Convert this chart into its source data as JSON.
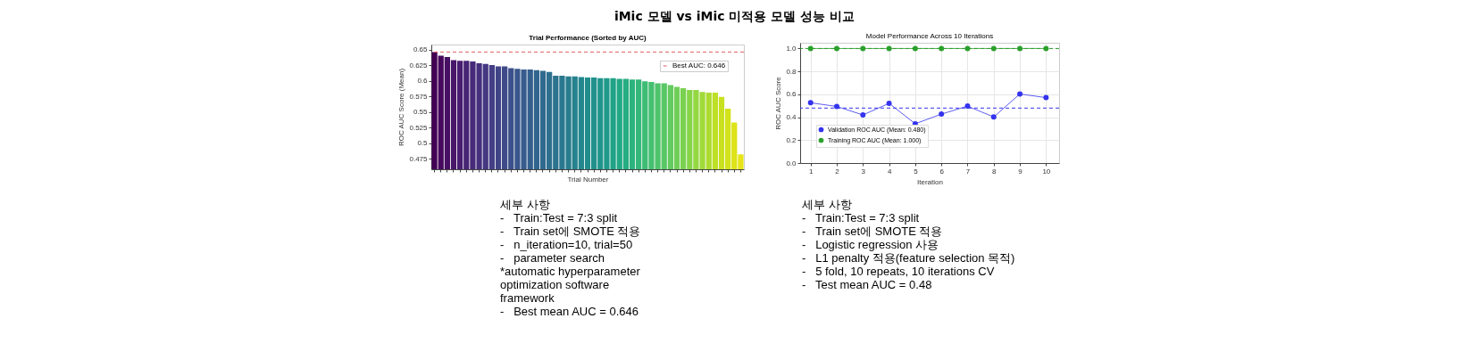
{
  "chart_data": [
    {
      "type": "bar",
      "title": "Trial Performance (Sorted by AUC)",
      "xlabel": "Trial Number",
      "ylabel": "ROC AUC Score (Mean)",
      "categories": [
        null,
        null,
        null,
        null,
        null,
        null,
        null,
        null,
        null,
        null,
        null,
        null,
        null,
        null,
        null,
        null,
        null,
        null,
        null,
        null,
        null,
        null,
        null,
        null,
        null,
        null,
        null,
        null,
        null,
        null,
        null,
        null,
        null,
        null,
        null,
        null,
        null,
        null,
        null,
        null,
        null,
        null,
        null,
        null,
        null,
        null,
        null,
        null,
        null
      ],
      "values": [
        0.646,
        0.64,
        0.638,
        0.633,
        0.632,
        0.632,
        0.631,
        0.628,
        0.627,
        0.625,
        0.623,
        0.623,
        0.62,
        0.619,
        0.618,
        0.618,
        0.617,
        0.616,
        0.614,
        0.608,
        0.608,
        0.607,
        0.607,
        0.606,
        0.605,
        0.605,
        0.604,
        0.604,
        0.604,
        0.603,
        0.603,
        0.602,
        0.602,
        0.599,
        0.598,
        0.596,
        0.596,
        0.593,
        0.59,
        0.588,
        0.585,
        0.585,
        0.582,
        0.581,
        0.581,
        0.574,
        0.555,
        0.533,
        0.482
      ],
      "colors": [
        "#440154",
        "#46085c",
        "#471063",
        "#481769",
        "#481d6f",
        "#482475",
        "#472a7a",
        "#46307e",
        "#453781",
        "#433e85",
        "#414487",
        "#3e4a89",
        "#3c508b",
        "#39568c",
        "#375b8d",
        "#355f8d",
        "#32658e",
        "#306a8e",
        "#2e6f8e",
        "#2c738e",
        "#2a788e",
        "#287d8e",
        "#26828e",
        "#24878e",
        "#228c8d",
        "#21918c",
        "#1f958b",
        "#1f9a8a",
        "#20a386",
        "#22a884",
        "#26ad81",
        "#2db27d",
        "#35b779",
        "#3dbc74",
        "#44bf70",
        "#4ec36b",
        "#58c765",
        "#63cb5f",
        "#6ece58",
        "#7ad151",
        "#86d549",
        "#93d741",
        "#a0da39",
        "#addc30",
        "#bddf26",
        "#c8e020",
        "#d2e21b",
        "#dde318",
        "#e7e419"
      ],
      "ylim": [
        0.458,
        0.658
      ],
      "yticks": [
        0.475,
        0.5,
        0.525,
        0.55,
        0.575,
        0.6,
        0.625,
        0.65
      ],
      "grid": false,
      "legend": "top right",
      "ref_lines": [
        {
          "axis": "y",
          "value": 0.646,
          "label": "Best AUC: 0.646",
          "color": "#e06060",
          "line_style": "dashed"
        }
      ],
      "annotations": [
        "iMic 모델 vs iMic 미적용 모델 성능 비교",
        "세부 사항",
        "-   Train:Test = 7:3 split",
        "-   Train set에 SMOTE 적용",
        "-   n_iteration=10, trial=50",
        "-   parameter search",
        "*automatic hyperparameter",
        "optimization software",
        "framework",
        "-   Best mean AUC = 0.646"
      ]
    },
    {
      "type": "line",
      "title": "Model Performance Across 10 Iterations",
      "xlabel": "Iteration",
      "ylabel": "ROC AUC Score",
      "x": [
        1,
        2,
        3,
        4,
        5,
        6,
        7,
        8,
        9,
        10
      ],
      "series": [
        {
          "name": "Validation ROC AUC (Mean: 0.480)",
          "color": "#3333ee",
          "values": [
            0.526,
            0.494,
            0.42,
            0.521,
            0.343,
            0.427,
            0.497,
            0.402,
            0.603,
            0.571
          ]
        },
        {
          "name": "Training ROC AUC (Mean: 1.000)",
          "color": "#2ca02c",
          "values": [
            1,
            1,
            1,
            1,
            1,
            1,
            1,
            1,
            1,
            1
          ]
        }
      ],
      "xlim": [
        0.6,
        10.5
      ],
      "xticks": [
        1,
        2,
        3,
        4,
        5,
        6,
        7,
        8,
        9,
        10
      ],
      "ylim": [
        0,
        1.05
      ],
      "yticks": [
        {
          "value": 0,
          "label": "0.0"
        },
        0.2,
        0.4,
        0.6,
        0.8,
        {
          "value": 1,
          "label": "1.0"
        }
      ],
      "grid": true,
      "legend": "bottom left",
      "marker": "circle",
      "line_style": "solid",
      "ref_lines": [
        {
          "axis": "y",
          "value": 0.48,
          "color": "#3333ee",
          "line_style": "dashed"
        },
        {
          "axis": "y",
          "value": 1.0,
          "color": "#2ca02c",
          "line_style": "dashed"
        }
      ],
      "annotations": [
        "세부 사항",
        "-   Train:Test = 7:3 split",
        "-   Train set에 SMOTE 적용",
        "-   Logistic regression 사용",
        "-   L1 penalty 적용(feature selection 목적)",
        "-   5 fold, 10 repeats, 10 iterations CV",
        "-   Test mean AUC = 0.48"
      ]
    }
  ]
}
